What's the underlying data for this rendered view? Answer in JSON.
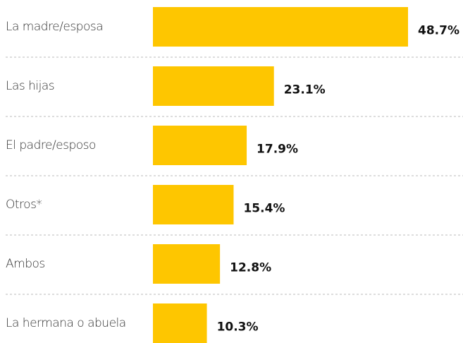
{
  "chart_data": {
    "type": "bar",
    "orientation": "horizontal",
    "categories": [
      "La madre/esposa",
      "Las hijas",
      "El padre/esposo",
      "Otros*",
      "Ambos",
      "La hermana o abuela"
    ],
    "values": [
      48.7,
      23.1,
      17.9,
      15.4,
      12.8,
      10.3
    ],
    "value_labels": [
      "48.7%",
      "23.1%",
      "17.9%",
      "15.4%",
      "12.8%",
      "10.3%"
    ],
    "color": "#fec600"
  }
}
